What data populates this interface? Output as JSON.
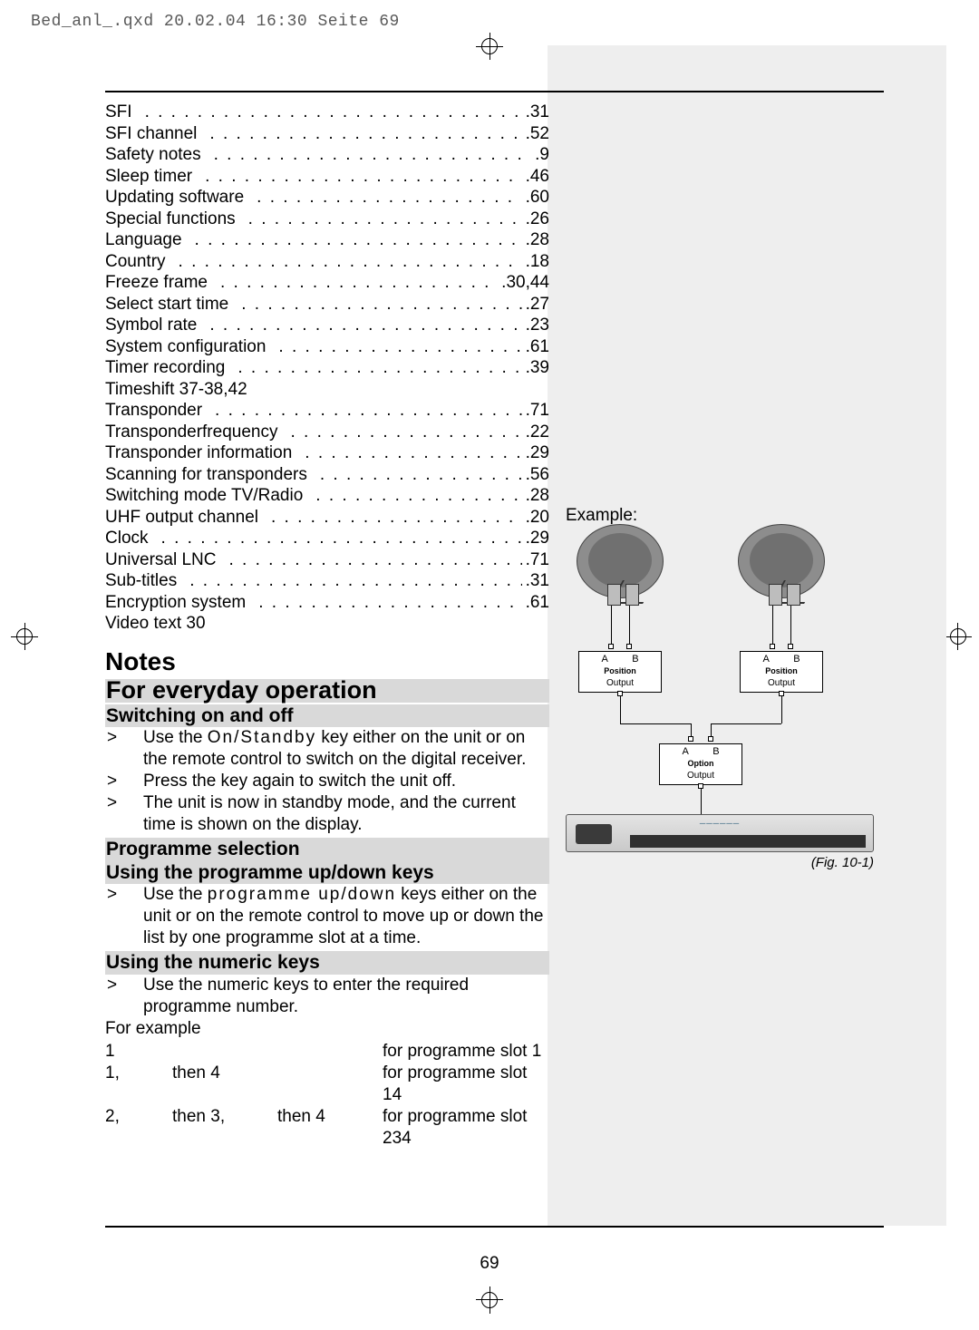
{
  "file_header": "Bed_anl_.qxd  20.02.04  16:30  Seite 69",
  "page_number": "69",
  "index": [
    {
      "term": "SFI",
      "page": "31"
    },
    {
      "term": "SFI channel",
      "page": "52"
    },
    {
      "term": "Safety notes",
      "page": "9"
    },
    {
      "term": "Sleep timer",
      "page": "46"
    },
    {
      "term": "Updating software",
      "page": "60"
    },
    {
      "term": "Special functions",
      "page": "26"
    },
    {
      "term": "Language",
      "page": "28"
    },
    {
      "term": "Country",
      "page": "18"
    },
    {
      "term": "Freeze frame",
      "page": "30,44"
    },
    {
      "term": "Select start time",
      "page": "27"
    },
    {
      "term": "Symbol rate",
      "page": "23"
    },
    {
      "term": "System configuration",
      "page": "61"
    },
    {
      "term": "Timer recording",
      "page": "39"
    },
    {
      "term": "Timeshift   37-38,42",
      "page": "",
      "nodots": true
    },
    {
      "term": "Transponder",
      "page": "71"
    },
    {
      "term": "Transponderfrequency",
      "page": "22"
    },
    {
      "term": "Transponder information",
      "page": "29"
    },
    {
      "term": "Scanning for transponders",
      "page": "56"
    },
    {
      "term": "Switching mode TV/Radio",
      "page": "28"
    },
    {
      "term": "UHF output channel",
      "page": "20"
    },
    {
      "term": "Clock",
      "page": "29"
    },
    {
      "term": "Universal LNC",
      "page": "71"
    },
    {
      "term": "Sub-titles",
      "page": "31"
    },
    {
      "term": "Encryption system",
      "page": "61"
    },
    {
      "term": "Video text  30",
      "page": "",
      "nodots": true
    }
  ],
  "headings": {
    "notes": "Notes",
    "everyday": "For everyday operation",
    "switching": "Switching on and off",
    "programme": "Programme selection",
    "updown": "Using the programme up/down keys",
    "numeric": "Using the numeric keys"
  },
  "bullets": {
    "sw1a": "Use the ",
    "sw1b": "On/Standby",
    "sw1c": " key either on the unit or on the remote control to switch on the digital receiver.",
    "sw2": "Press the key again to switch the unit off.",
    "sw3": "The unit is now in standby mode, and the current time is shown on the display.",
    "ud1a": "Use the ",
    "ud1b": "programme up/down",
    "ud1c": " keys either on the unit or on the remote control to move up or down the list by one programme slot at a time.",
    "nk1": "Use the numeric keys to enter the required programme number.",
    "forexample": "For example"
  },
  "example_rows": [
    {
      "c1": "1",
      "c2": "",
      "c3": "",
      "c4": "for programme slot 1"
    },
    {
      "c1": "1,",
      "c2": "then 4",
      "c3": "",
      "c4": "for programme slot 14"
    },
    {
      "c1": "2,",
      "c2": "then 3,",
      "c3": "then 4",
      "c4": "for programme slot 234"
    }
  ],
  "figure": {
    "example_label": "Example:",
    "caption": "(Fig. 10-1)",
    "ab": "A    B",
    "position": "Position",
    "option": "Option",
    "output": "Output"
  },
  "colors": {
    "shade": "#eeeeee",
    "subhead_bg": "#d9d9d9",
    "dish": "#8d8d8d",
    "dish_inner": "#707070"
  }
}
